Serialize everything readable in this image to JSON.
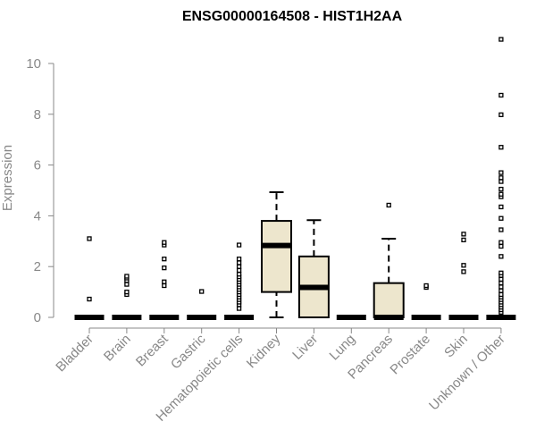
{
  "chart_data": {
    "type": "box",
    "title": "ENSG00000164508 - HIST1H2AA",
    "xlabel": "",
    "ylabel": "Expression",
    "ylim": [
      0,
      11
    ],
    "yticks": [
      0,
      2,
      4,
      6,
      8,
      10
    ],
    "grid": false,
    "box_fill": "#ede6cd",
    "categories": [
      "Bladder",
      "Brain",
      "Breast",
      "Gastric",
      "Hematopoietic cells",
      "Kidney",
      "Liver",
      "Lung",
      "Pancreas",
      "Prostate",
      "Skin",
      "Unknown / Other"
    ],
    "boxes": [
      {
        "q1": 0,
        "median": 0,
        "q3": 0,
        "whisker_low": 0,
        "whisker_high": 0,
        "outliers": [
          0.72,
          3.1
        ]
      },
      {
        "q1": 0,
        "median": 0,
        "q3": 0,
        "whisker_low": 0,
        "whisker_high": 0,
        "outliers": [
          0.9,
          1.0,
          1.3,
          1.45,
          1.55,
          1.62
        ]
      },
      {
        "q1": 0,
        "median": 0,
        "q3": 0,
        "whisker_low": 0,
        "whisker_high": 0,
        "outliers": [
          1.25,
          1.4,
          1.95,
          2.3,
          2.85,
          2.95
        ]
      },
      {
        "q1": 0,
        "median": 0,
        "q3": 0,
        "whisker_low": 0,
        "whisker_high": 0,
        "outliers": [
          1.02
        ]
      },
      {
        "q1": 0,
        "median": 0,
        "q3": 0,
        "whisker_low": 0,
        "whisker_high": 0,
        "outliers": [
          0.35,
          0.5,
          0.6,
          0.7,
          0.8,
          0.9,
          1.0,
          1.1,
          1.2,
          1.3,
          1.4,
          1.5,
          1.6,
          1.7,
          1.85,
          2.0,
          2.15,
          2.3,
          2.85
        ]
      },
      {
        "q1": 1.0,
        "median": 2.83,
        "q3": 3.8,
        "whisker_low": 0,
        "whisker_high": 4.93,
        "outliers": []
      },
      {
        "q1": 0,
        "median": 1.18,
        "q3": 2.4,
        "whisker_low": 0,
        "whisker_high": 3.83,
        "outliers": []
      },
      {
        "q1": 0,
        "median": 0,
        "q3": 0,
        "whisker_low": 0,
        "whisker_high": 0,
        "outliers": []
      },
      {
        "q1": 0,
        "median": 0,
        "q3": 1.35,
        "whisker_low": 0,
        "whisker_high": 3.1,
        "outliers": [
          4.42
        ]
      },
      {
        "q1": 0,
        "median": 0,
        "q3": 0,
        "whisker_low": 0,
        "whisker_high": 0,
        "outliers": [
          1.18,
          1.25
        ]
      },
      {
        "q1": 0,
        "median": 0,
        "q3": 0,
        "whisker_low": 0,
        "whisker_high": 0,
        "outliers": [
          1.8,
          2.05,
          3.05,
          3.28
        ]
      },
      {
        "q1": 0,
        "median": 0,
        "q3": 0,
        "whisker_low": 0,
        "whisker_high": 0,
        "outliers": [
          0.2,
          0.3,
          0.4,
          0.5,
          0.6,
          0.7,
          0.8,
          0.9,
          1.05,
          1.2,
          1.35,
          1.5,
          1.65,
          1.75,
          2.4,
          2.8,
          2.95,
          3.45,
          3.9,
          4.35,
          4.75,
          4.85,
          5.05,
          5.35,
          5.5,
          5.7,
          6.7,
          7.98,
          8.75,
          10.95
        ]
      }
    ]
  }
}
